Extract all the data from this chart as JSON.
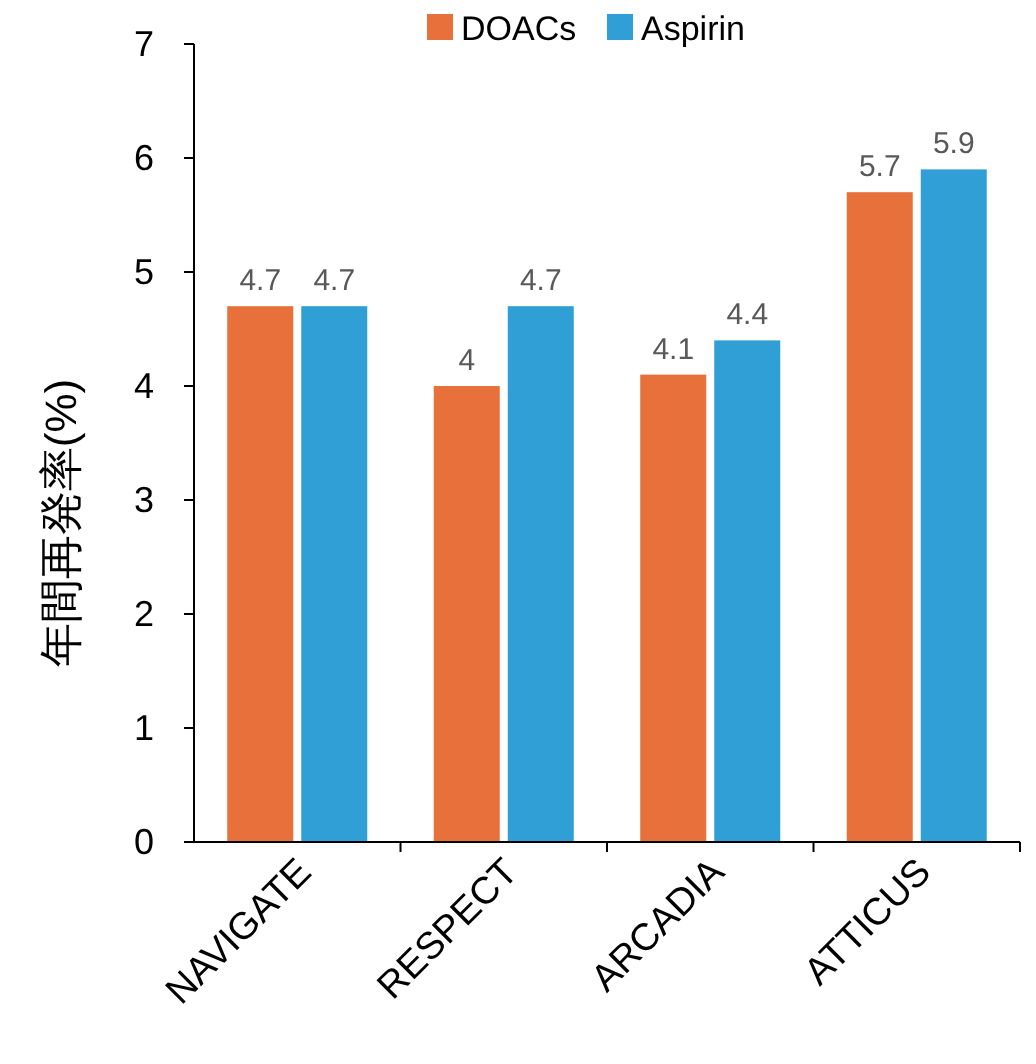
{
  "chart_data": {
    "type": "bar",
    "ylabel": "年間再発率(%)",
    "categories": [
      "NAVIGATE",
      "RESPECT",
      "ARCADIA",
      "ATTICUS"
    ],
    "series": [
      {
        "name": "DOACs",
        "color": "#e8703a",
        "values": [
          4.7,
          4,
          4.1,
          5.7
        ]
      },
      {
        "name": "Aspirin",
        "color": "#2f9fd6",
        "values": [
          4.7,
          4.7,
          4.4,
          5.9
        ]
      }
    ],
    "ylim": [
      0,
      7
    ],
    "yticks": [
      0,
      1,
      2,
      3,
      4,
      5,
      6,
      7
    ],
    "legend": "top",
    "data_labels": true,
    "grid": false
  }
}
